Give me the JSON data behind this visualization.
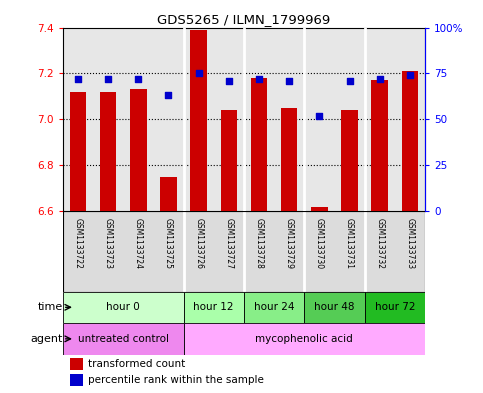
{
  "title": "GDS5265 / ILMN_1799969",
  "samples": [
    "GSM1133722",
    "GSM1133723",
    "GSM1133724",
    "GSM1133725",
    "GSM1133726",
    "GSM1133727",
    "GSM1133728",
    "GSM1133729",
    "GSM1133730",
    "GSM1133731",
    "GSM1133732",
    "GSM1133733"
  ],
  "transformed_count": [
    7.12,
    7.12,
    7.13,
    6.75,
    7.39,
    7.04,
    7.18,
    7.05,
    6.62,
    7.04,
    7.17,
    7.21
  ],
  "percentile_rank": [
    72,
    72,
    72,
    63,
    75,
    71,
    72,
    71,
    52,
    71,
    72,
    74
  ],
  "ylim_left": [
    6.6,
    7.4
  ],
  "ylim_right": [
    0,
    100
  ],
  "yticks_left": [
    6.6,
    6.8,
    7.0,
    7.2,
    7.4
  ],
  "yticks_right": [
    0,
    25,
    50,
    75,
    100
  ],
  "ytick_labels_right": [
    "0",
    "25",
    "50",
    "75",
    "100%"
  ],
  "bar_color": "#cc0000",
  "dot_color": "#0000cc",
  "bar_bottom": 6.6,
  "group_boundaries": [
    3.5,
    5.5,
    7.5,
    9.5
  ],
  "time_groups": [
    {
      "label": "hour 0",
      "start": 0,
      "end": 4,
      "color": "#ccffcc"
    },
    {
      "label": "hour 12",
      "start": 4,
      "end": 6,
      "color": "#aaffaa"
    },
    {
      "label": "hour 24",
      "start": 6,
      "end": 8,
      "color": "#88ee88"
    },
    {
      "label": "hour 48",
      "start": 8,
      "end": 10,
      "color": "#55cc55"
    },
    {
      "label": "hour 72",
      "start": 10,
      "end": 12,
      "color": "#22bb22"
    }
  ],
  "agent_groups": [
    {
      "label": "untreated control",
      "start": 0,
      "end": 4,
      "color": "#ee88ee"
    },
    {
      "label": "mycophenolic acid",
      "start": 4,
      "end": 12,
      "color": "#ffaaff"
    }
  ],
  "sample_bg_color": "#bbbbbb",
  "legend_bar_label": "transformed count",
  "legend_dot_label": "percentile rank within the sample",
  "time_label": "time",
  "agent_label": "agent"
}
